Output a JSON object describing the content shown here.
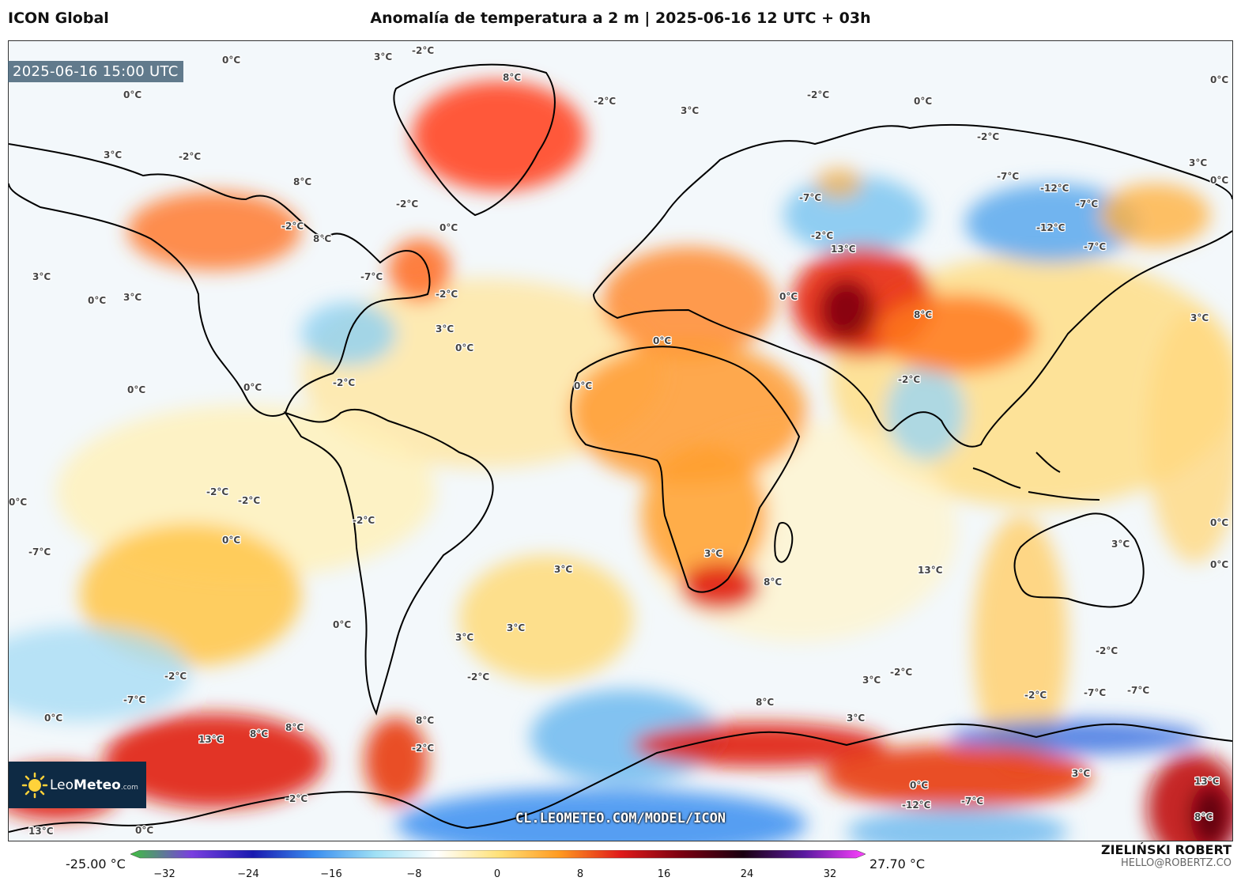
{
  "header": {
    "model_name": "ICON Global",
    "title": "Anomalía de temperatura a 2 m | 2025-06-16 12 UTC + 03h"
  },
  "valid_time": "2025-06-16 15:00 UTC",
  "logo": {
    "text_light": "Leo",
    "text_bold": "Meteo",
    "text_small": ".com"
  },
  "url": "CL.LEOMETEO.COM/MODEL/ICON",
  "author": {
    "name": "ZIELIŃSKI ROBERT",
    "email": "HELLO@ROBERTZ.CO"
  },
  "colorbar": {
    "min_label": "-25.00 °C",
    "max_label": "27.70 °C",
    "ticks": [
      "−32",
      "−24",
      "−16",
      "−8",
      "0",
      "8",
      "16",
      "24",
      "32"
    ],
    "colors": [
      "#3fbf3f",
      "#7a3fe0",
      "#1a1ab0",
      "#3a8ef0",
      "#9fe0f5",
      "#ffffff",
      "#ffe27a",
      "#ff9a20",
      "#e01a1a",
      "#7a0010",
      "#1a0010",
      "#5a1aa0",
      "#ff40ff"
    ]
  },
  "map_labels": [
    {
      "t": "0°C"
    },
    {
      "t": "0°C"
    },
    {
      "t": "3°C"
    },
    {
      "t": "-2°C"
    },
    {
      "t": "8°C"
    },
    {
      "t": "-2°C"
    },
    {
      "t": "3°C"
    },
    {
      "t": "0°C"
    },
    {
      "t": "3°C"
    },
    {
      "t": "-2°C"
    },
    {
      "t": "8°C"
    },
    {
      "t": "-2°C"
    },
    {
      "t": "0°C"
    },
    {
      "t": "8°C"
    },
    {
      "t": "-2°C"
    },
    {
      "t": "3°C"
    },
    {
      "t": "3°C"
    },
    {
      "t": "0°C"
    },
    {
      "t": "-7°C"
    },
    {
      "t": "-2°C"
    },
    {
      "t": "3°C"
    },
    {
      "t": "0°C"
    },
    {
      "t": "-7°C"
    },
    {
      "t": "-2°C"
    },
    {
      "t": "-12°C"
    },
    {
      "t": "-7°C"
    },
    {
      "t": "13°C"
    },
    {
      "t": "8°C"
    },
    {
      "t": "-2°C"
    },
    {
      "t": "3°C"
    },
    {
      "t": "0°C"
    },
    {
      "t": "0°C"
    },
    {
      "t": "0°C"
    },
    {
      "t": "0°C"
    },
    {
      "t": "0°C"
    },
    {
      "t": "-2°C"
    },
    {
      "t": "0°C"
    },
    {
      "t": "3°C"
    },
    {
      "t": "-2°C"
    },
    {
      "t": "0°C"
    },
    {
      "t": "8°C"
    },
    {
      "t": "3°C"
    },
    {
      "t": "0°C"
    },
    {
      "t": "-2°C"
    },
    {
      "t": "-2°C"
    },
    {
      "t": "-2°C"
    },
    {
      "t": "-7°C"
    },
    {
      "t": "-12°C"
    },
    {
      "t": "-7°C"
    },
    {
      "t": "-7°C"
    },
    {
      "t": "0°C"
    },
    {
      "t": "3°C"
    },
    {
      "t": "13°C"
    },
    {
      "t": "8°C"
    },
    {
      "t": "8°C"
    },
    {
      "t": "-2°C"
    },
    {
      "t": "-2°C"
    },
    {
      "t": "-2°C"
    },
    {
      "t": "13°C"
    },
    {
      "t": "8°C"
    },
    {
      "t": "3°C"
    },
    {
      "t": "-2°C"
    },
    {
      "t": "3°C"
    },
    {
      "t": "0°C"
    },
    {
      "t": "0°C"
    },
    {
      "t": "3°C"
    },
    {
      "t": "-2°C"
    },
    {
      "t": "-7°C"
    },
    {
      "t": "-7°C"
    },
    {
      "t": "-12°C"
    },
    {
      "t": "-7°C"
    },
    {
      "t": "3°C"
    },
    {
      "t": "13°C"
    },
    {
      "t": "8°C"
    },
    {
      "t": "0°C"
    },
    {
      "t": "-2°C"
    },
    {
      "t": "0°C"
    },
    {
      "t": "-2°C"
    },
    {
      "t": "0°C"
    },
    {
      "t": "3°C"
    },
    {
      "t": "0°C"
    },
    {
      "t": "-7°C"
    },
    {
      "t": "0°C"
    },
    {
      "t": "13°C"
    },
    {
      "t": "3°C"
    },
    {
      "t": "3°C"
    },
    {
      "t": "-2°C"
    },
    {
      "t": "8°C"
    }
  ]
}
